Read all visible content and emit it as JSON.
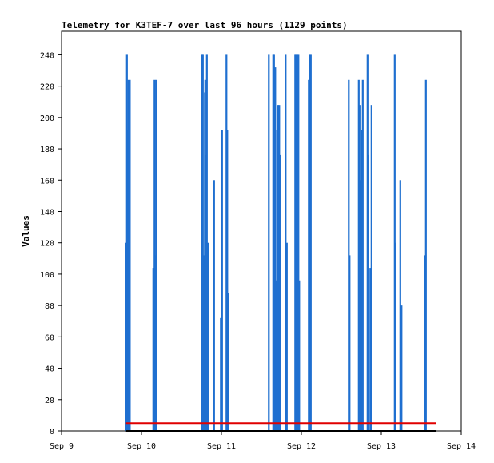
{
  "chart_data": {
    "type": "bar",
    "title": "Telemetry for K3TEF-7 over last 96 hours (1129 points)",
    "xlabel": "",
    "ylabel": "Values",
    "ylim": [
      0,
      255
    ],
    "xlim": [
      "Sep 9",
      "Sep 14"
    ],
    "x_ticks": [
      "Sep 9",
      "Sep 10",
      "Sep 11",
      "Sep 12",
      "Sep 13",
      "Sep 14"
    ],
    "y_ticks": [
      0,
      20,
      40,
      60,
      80,
      100,
      120,
      140,
      160,
      180,
      200,
      220,
      240
    ],
    "grid": false,
    "legend": "none",
    "colors": {
      "bars": "#1f6fd0",
      "reference_line": "#e00000",
      "baseline": "#000000",
      "axes": "#000000"
    },
    "x_unit": "days since Sep 9",
    "series": [
      {
        "values": [
          [
            0.807,
            120
          ],
          [
            0.817,
            240
          ],
          [
            0.827,
            192
          ],
          [
            0.837,
            224
          ],
          [
            0.853,
            224
          ],
          [
            1.147,
            104
          ],
          [
            1.162,
            224
          ],
          [
            1.172,
            112
          ],
          [
            1.182,
            224
          ],
          [
            1.757,
            240
          ],
          [
            1.767,
            240
          ],
          [
            1.782,
            112
          ],
          [
            1.792,
            216
          ],
          [
            1.797,
            224
          ],
          [
            1.807,
            176
          ],
          [
            1.817,
            240
          ],
          [
            1.832,
            120
          ],
          [
            1.907,
            160
          ],
          [
            1.992,
            72
          ],
          [
            2.007,
            192
          ],
          [
            2.062,
            240
          ],
          [
            2.072,
            192
          ],
          [
            2.082,
            88
          ],
          [
            2.592,
            240
          ],
          [
            2.647,
            240
          ],
          [
            2.657,
            240
          ],
          [
            2.672,
            232
          ],
          [
            2.687,
            96
          ],
          [
            2.697,
            192
          ],
          [
            2.707,
            208
          ],
          [
            2.722,
            208
          ],
          [
            2.737,
            176
          ],
          [
            2.802,
            240
          ],
          [
            2.817,
            120
          ],
          [
            2.922,
            240
          ],
          [
            2.932,
            240
          ],
          [
            2.947,
            240
          ],
          [
            2.962,
            240
          ],
          [
            2.972,
            96
          ],
          [
            3.092,
            224
          ],
          [
            3.102,
            240
          ],
          [
            3.117,
            240
          ],
          [
            3.592,
            224
          ],
          [
            3.602,
            112
          ],
          [
            3.717,
            224
          ],
          [
            3.727,
            208
          ],
          [
            3.742,
            160
          ],
          [
            3.752,
            192
          ],
          [
            3.767,
            224
          ],
          [
            3.827,
            240
          ],
          [
            3.837,
            176
          ],
          [
            3.862,
            104
          ],
          [
            3.877,
            208
          ],
          [
            4.167,
            240
          ],
          [
            4.177,
            120
          ],
          [
            4.237,
            160
          ],
          [
            4.252,
            80
          ],
          [
            4.547,
            112
          ],
          [
            4.557,
            224
          ]
        ]
      },
      {
        "values": [
          [
            0.807,
            5
          ],
          [
            4.687,
            5
          ]
        ]
      },
      {
        "values": [
          [
            0.807,
            0
          ],
          [
            4.687,
            0
          ]
        ]
      }
    ]
  }
}
